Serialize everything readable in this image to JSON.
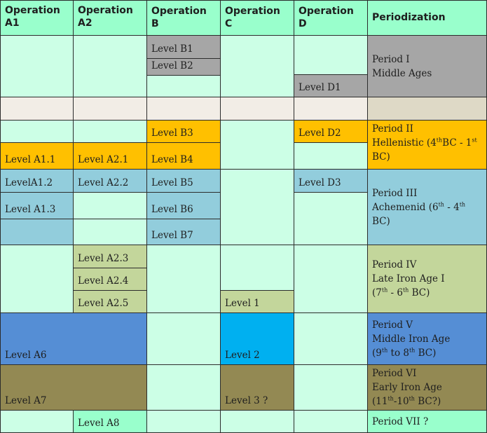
{
  "headers": {
    "op_a1": "Operation A1",
    "op_a2": "Operation A2",
    "op_b": "Operation B",
    "op_c": "Operation C",
    "op_d": "Operation D",
    "periodization": "Periodization"
  },
  "levels": {
    "b1": "Level B1",
    "b2": "Level B2",
    "d1": "Level D1",
    "b3": "Level B3",
    "d2": "Level D2",
    "a1_1": "Level A1.1",
    "a2_1": "Level A2.1",
    "b4": "Level B4",
    "a1_2": "LevelA1.2",
    "a2_2": "Level A2.2",
    "b5": "Level B5",
    "d3": "Level D3",
    "a1_3": "Level A1.3",
    "b6": "Level B6",
    "b7": "Level B7",
    "a2_3": "Level A2.3",
    "a2_4": "Level A2.4",
    "a2_5": "Level A2.5",
    "c1": "Level 1",
    "a6": "Level A6",
    "c2": "Level 2",
    "a7": "Level A7",
    "c3": "Level 3 ?",
    "a8": "Level A8"
  },
  "periods": {
    "p1": {
      "name": "Period I",
      "label": "Middle Ages"
    },
    "p2": {
      "name": "Period II",
      "label_a": "Hellenistic (4",
      "sup1": "th",
      "label_b": "BC - 1",
      "sup2": "st",
      "label_c": "BC)"
    },
    "p3": {
      "name": "Period III",
      "label_a": "Achemenid (6",
      "sup1": "th",
      "label_b": " - 4",
      "sup2": "th",
      "label_c": " BC)"
    },
    "p4": {
      "name": "Period IV",
      "label": "Late Iron Age I",
      "range_a": "(7",
      "sup1": "th",
      "range_b": " - 6",
      "sup2": "th",
      "range_c": " BC)"
    },
    "p5": {
      "name": "Period V",
      "label": "Middle Iron Age",
      "range_a": "(9",
      "sup1": "th",
      "range_b": " to 8",
      "sup2": "th",
      "range_c": " BC)"
    },
    "p6": {
      "name": "Period VI",
      "label": "Early Iron Age",
      "range_a": "(11",
      "sup1": "th",
      "range_b": "-10",
      "sup2": "th",
      "range_c": " BC?)"
    },
    "p7": {
      "name": "Period VII ?"
    }
  },
  "colors": {
    "header": "#99ffcc",
    "empty": "#ccffe6",
    "middle_ages": "#a6a6a6",
    "hellenistic": "#ffc000",
    "achemenid": "#92cddc",
    "late_iron_age": "#c3d69b",
    "middle_iron_age": "#558ed5",
    "operation_c_level2": "#00b0f0",
    "early_iron_age": "#938953"
  }
}
